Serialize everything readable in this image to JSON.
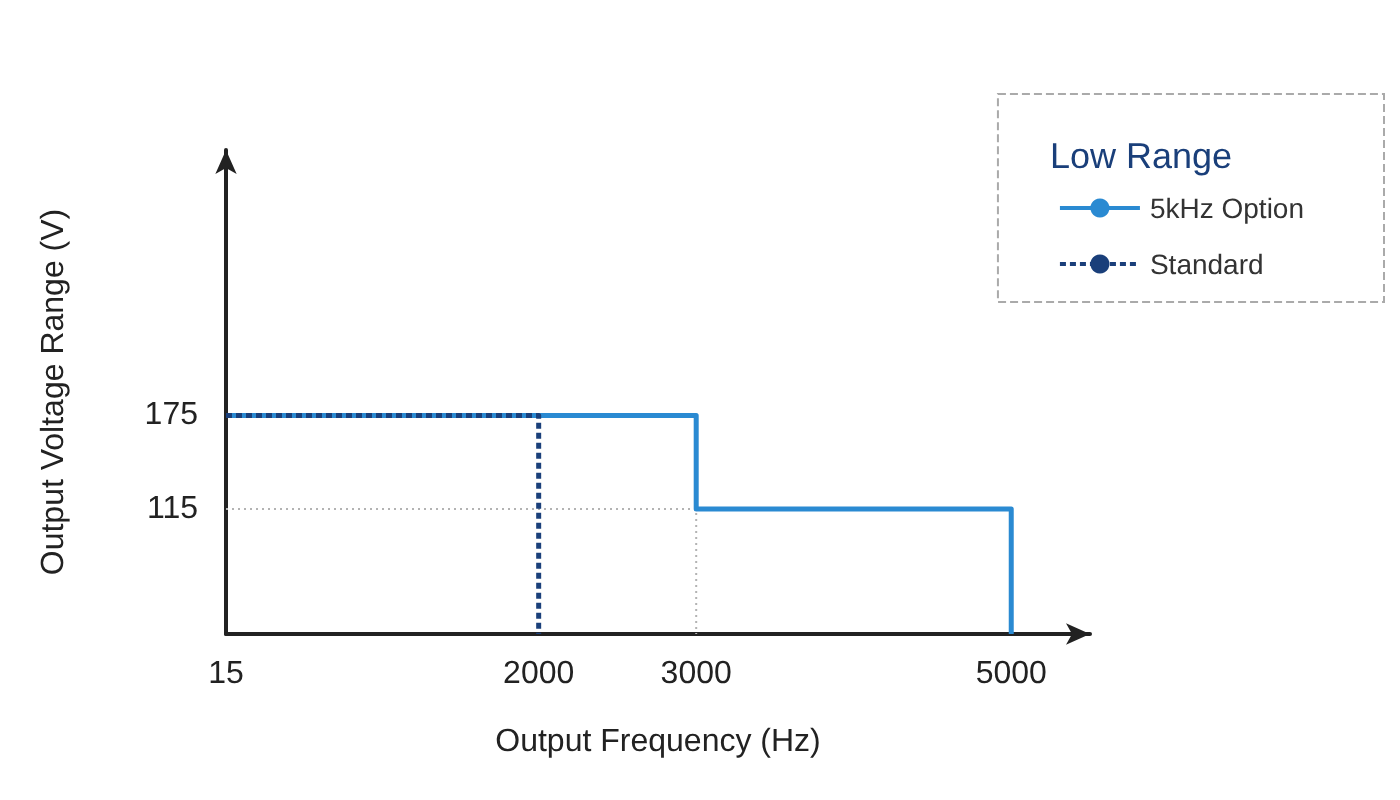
{
  "chart_data": {
    "type": "line",
    "xlabel": "Output Frequency (Hz)",
    "ylabel": "Output Voltage Range (V)",
    "legend_title": "Low Range",
    "xlim": [
      15,
      5500
    ],
    "xticks": [
      15,
      2000,
      3000,
      5000
    ],
    "ylim": [
      35,
      345
    ],
    "yticks": [
      115,
      175
    ],
    "series": [
      {
        "color": "#b3b3b3",
        "line_style": "dotted",
        "x": [
          15,
          3000,
          3000
        ],
        "values": [
          115,
          115,
          35
        ]
      },
      {
        "name": "5kHz Option",
        "color": "#2a8ad2",
        "line_style": "solid",
        "x": [
          15,
          3000,
          3000,
          5000,
          5000
        ],
        "values": [
          175,
          175,
          115,
          115,
          35
        ]
      },
      {
        "name": "Standard",
        "color": "#1a3f7a",
        "line_style": "dashed",
        "x": [
          15,
          2000,
          2000
        ],
        "values": [
          175,
          175,
          35
        ]
      }
    ],
    "grid": false,
    "legend": "top right",
    "marker": "none"
  }
}
